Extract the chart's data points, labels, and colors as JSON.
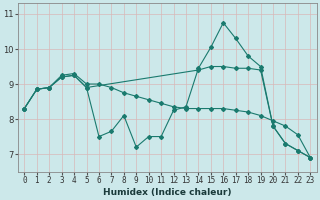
{
  "xlabel": "Humidex (Indice chaleur)",
  "xlim": [
    -0.5,
    23.5
  ],
  "ylim": [
    6.5,
    11.3
  ],
  "yticks": [
    7,
    8,
    9,
    10,
    11
  ],
  "xticks": [
    0,
    1,
    2,
    3,
    4,
    5,
    6,
    7,
    8,
    9,
    10,
    11,
    12,
    13,
    14,
    15,
    16,
    17,
    18,
    19,
    20,
    21,
    22,
    23
  ],
  "bg_color": "#cce8ea",
  "grid_color": "#b0d8da",
  "line_color": "#1a7a6e",
  "line1_x": [
    0,
    1,
    2,
    3,
    4,
    5,
    6,
    7,
    8,
    9,
    10,
    11,
    12,
    13,
    14,
    15,
    16,
    17,
    18,
    19,
    20,
    21,
    22,
    23
  ],
  "line1_y": [
    8.3,
    8.85,
    8.9,
    9.2,
    9.25,
    8.9,
    7.5,
    7.65,
    8.1,
    7.2,
    7.5,
    7.5,
    8.25,
    8.35,
    9.45,
    10.05,
    10.75,
    10.3,
    9.8,
    9.5,
    7.8,
    7.3,
    7.1,
    6.9
  ],
  "line2_x": [
    0,
    1,
    2,
    3,
    4,
    5,
    6,
    7,
    8,
    9,
    10,
    11,
    12,
    13,
    14,
    15,
    16,
    17,
    18,
    19,
    20,
    21,
    22,
    23
  ],
  "line2_y": [
    8.3,
    8.85,
    8.9,
    9.25,
    9.3,
    9.0,
    9.0,
    8.9,
    8.75,
    8.65,
    8.55,
    8.45,
    8.35,
    8.3,
    8.3,
    8.3,
    8.3,
    8.25,
    8.2,
    8.1,
    7.95,
    7.8,
    7.55,
    6.9
  ],
  "line3_x": [
    0,
    1,
    2,
    3,
    4,
    5,
    14,
    15,
    16,
    17,
    18,
    19,
    20,
    21,
    22,
    23
  ],
  "line3_y": [
    8.3,
    8.85,
    8.9,
    9.2,
    9.25,
    8.9,
    9.4,
    9.5,
    9.5,
    9.45,
    9.45,
    9.4,
    7.8,
    7.3,
    7.1,
    6.9
  ]
}
